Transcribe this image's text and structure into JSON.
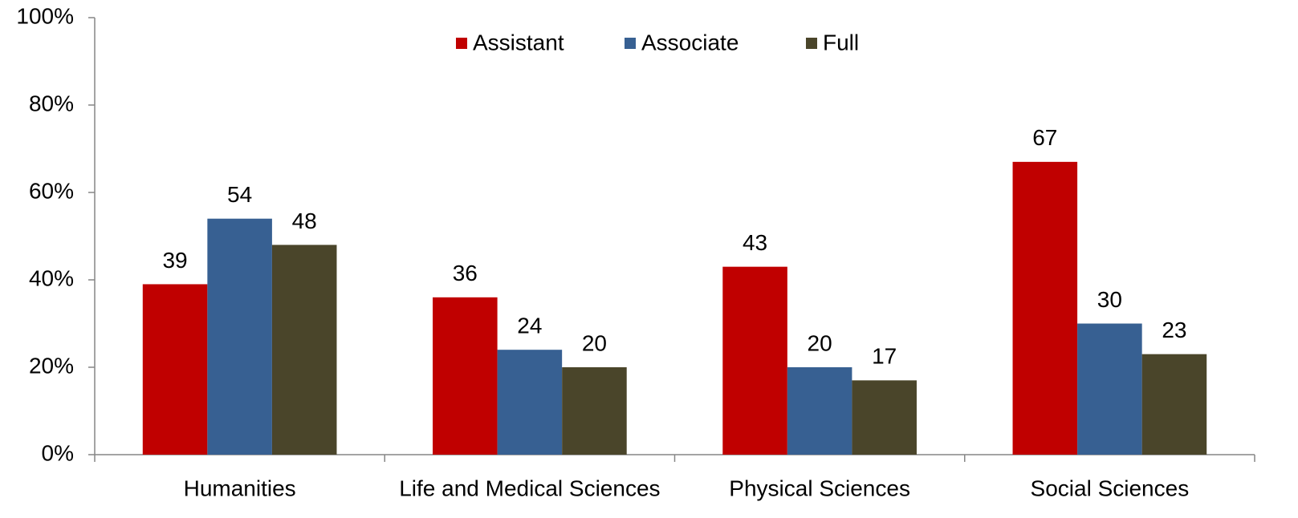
{
  "chart_data": {
    "type": "bar",
    "categories": [
      "Humanities",
      "Life and Medical Sciences",
      "Physical Sciences",
      "Social Sciences"
    ],
    "series": [
      {
        "name": "Assistant",
        "color": "#c00000",
        "values": [
          39,
          36,
          43,
          67
        ]
      },
      {
        "name": "Associate",
        "color": "#376092",
        "values": [
          54,
          24,
          20,
          30
        ]
      },
      {
        "name": "Full",
        "color": "#4a452a",
        "values": [
          48,
          20,
          17,
          23
        ]
      }
    ],
    "ylim": [
      0,
      100
    ],
    "yticks": [
      {
        "value": 0,
        "label": "0%"
      },
      {
        "value": 20,
        "label": "20%"
      },
      {
        "value": 40,
        "label": "40%"
      },
      {
        "value": 60,
        "label": "60%"
      },
      {
        "value": 80,
        "label": "80%"
      },
      {
        "value": 100,
        "label": "100%"
      }
    ],
    "grid": false,
    "legend": "top"
  }
}
